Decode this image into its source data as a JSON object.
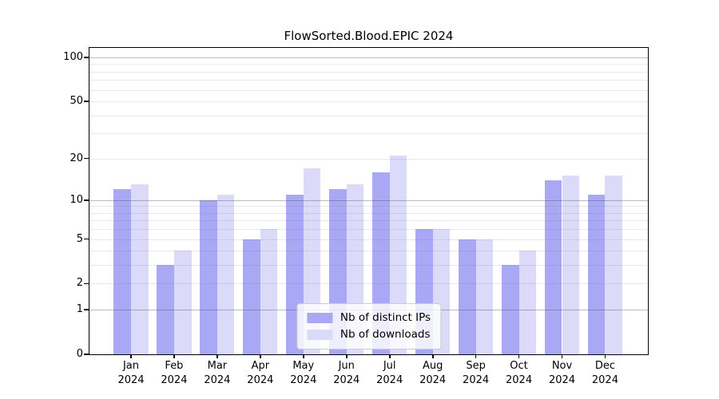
{
  "figure": {
    "background": "#ffffff"
  },
  "chart_data": {
    "type": "bar",
    "title": "FlowSorted.Blood.EPIC 2024",
    "categories": [
      "Jan",
      "Feb",
      "Mar",
      "Apr",
      "May",
      "Jun",
      "Jul",
      "Aug",
      "Sep",
      "Oct",
      "Nov",
      "Dec"
    ],
    "year_label": "2024",
    "series": [
      {
        "name": "Nb of distinct IPs",
        "color": "#a8a8f5",
        "values": [
          12,
          3,
          10,
          5,
          11,
          12,
          16,
          6,
          5,
          3,
          14,
          11
        ]
      },
      {
        "name": "Nb of downloads",
        "color": "#dbdbf9",
        "values": [
          13,
          4,
          11,
          6,
          17,
          13,
          21,
          6,
          5,
          4,
          15,
          15
        ]
      }
    ],
    "xlabel": "",
    "ylabel": "",
    "y_axis": {
      "scale": "log1p",
      "ylim": [
        0,
        116
      ],
      "ticks": [
        0,
        1,
        2,
        5,
        10,
        20,
        50,
        100
      ],
      "major_gridlines": [
        1,
        10,
        100
      ],
      "minor_gridlines": [
        2,
        3,
        4,
        5,
        6,
        7,
        8,
        9,
        20,
        30,
        40,
        50,
        60,
        70,
        80,
        90
      ]
    },
    "grid": true,
    "legend": {
      "position": "lower center",
      "entries": [
        "Nb of distinct IPs",
        "Nb of downloads"
      ]
    }
  }
}
